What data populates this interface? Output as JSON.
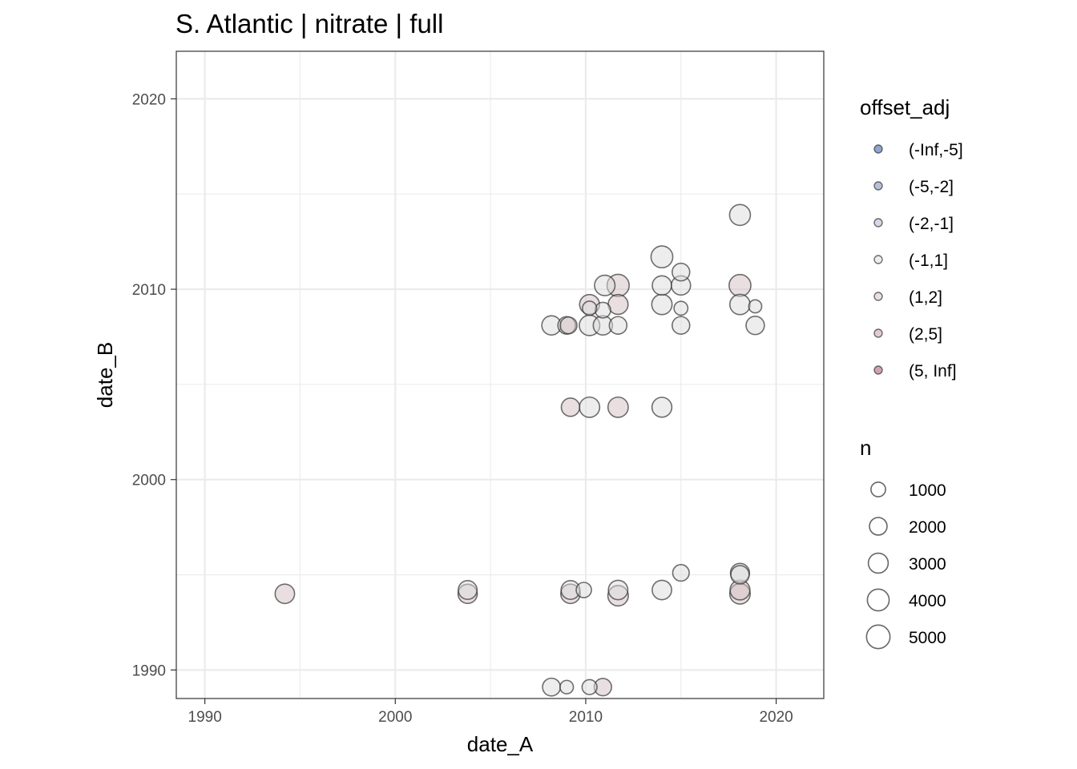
{
  "chart_data": {
    "type": "scatter",
    "title": "S. Atlantic | nitrate | full",
    "xlabel": "date_A",
    "ylabel": "date_B",
    "xlim": [
      1988.5,
      2022.5
    ],
    "ylim": [
      1988.5,
      2022.5
    ],
    "x_ticks": [
      1990,
      2000,
      2010,
      2020
    ],
    "y_ticks": [
      1990,
      2000,
      2010,
      2020
    ],
    "x_tick_labels": [
      "1990",
      "2000",
      "2010",
      "2020"
    ],
    "y_tick_labels": [
      "1990",
      "2000",
      "2010",
      "2020"
    ],
    "grid": true,
    "legend_position": "right",
    "point_alpha": 0.5,
    "color_legend": {
      "title": "offset_adj",
      "entries": [
        {
          "label": "(-Inf,-5]",
          "color": "#1b4b9f"
        },
        {
          "label": "(-5,-2]",
          "color": "#6f7fb8"
        },
        {
          "label": "(-2,-1]",
          "color": "#a9b0cf"
        },
        {
          "label": "(-1,1]",
          "color": "#dcdcdc"
        },
        {
          "label": "(1,2]",
          "color": "#d4bfc4"
        },
        {
          "label": "(2,5]",
          "color": "#c49aa6"
        },
        {
          "label": "(5, Inf]",
          "color": "#a3475f"
        }
      ]
    },
    "size_legend": {
      "title": "n",
      "entries": [
        {
          "label": "1000",
          "value": 1000
        },
        {
          "label": "2000",
          "value": 2000
        },
        {
          "label": "3000",
          "value": 3000
        },
        {
          "label": "4000",
          "value": 4000
        },
        {
          "label": "5000",
          "value": 5000
        }
      ]
    },
    "points": [
      {
        "x": 1994.2,
        "y": 1994.0,
        "n": 2800,
        "offset": "(1,2]"
      },
      {
        "x": 2003.8,
        "y": 1994.2,
        "n": 2500,
        "offset": "(-1,1]"
      },
      {
        "x": 2003.8,
        "y": 1994.0,
        "n": 2700,
        "offset": "(1,2]"
      },
      {
        "x": 2009.2,
        "y": 1994.2,
        "n": 2500,
        "offset": "(-1,1]"
      },
      {
        "x": 2009.2,
        "y": 1994.0,
        "n": 2800,
        "offset": "(1,2]"
      },
      {
        "x": 2009.9,
        "y": 1994.2,
        "n": 1200,
        "offset": "(-1,1]"
      },
      {
        "x": 2011.7,
        "y": 1994.2,
        "n": 2800,
        "offset": "(-1,1]"
      },
      {
        "x": 2011.7,
        "y": 1993.9,
        "n": 3300,
        "offset": "(1,2]"
      },
      {
        "x": 2014.0,
        "y": 1994.2,
        "n": 2800,
        "offset": "(-1,1]"
      },
      {
        "x": 2015.0,
        "y": 1995.1,
        "n": 1600,
        "offset": "(-1,1]"
      },
      {
        "x": 2018.1,
        "y": 1995.1,
        "n": 2600,
        "offset": "(-1,1]"
      },
      {
        "x": 2018.1,
        "y": 1995.0,
        "n": 2300,
        "offset": "(-1,1]"
      },
      {
        "x": 2018.1,
        "y": 1994.2,
        "n": 3000,
        "offset": "(1,2]"
      },
      {
        "x": 2018.1,
        "y": 1994.0,
        "n": 3300,
        "offset": "(1,2]"
      },
      {
        "x": 2008.2,
        "y": 1989.1,
        "n": 2100,
        "offset": "(-1,1]"
      },
      {
        "x": 2009.0,
        "y": 1989.1,
        "n": 700,
        "offset": "(-1,1]"
      },
      {
        "x": 2010.2,
        "y": 1989.1,
        "n": 1100,
        "offset": "(-1,1]"
      },
      {
        "x": 2010.9,
        "y": 1989.1,
        "n": 1900,
        "offset": "(1,2]"
      },
      {
        "x": 2009.2,
        "y": 2003.8,
        "n": 2300,
        "offset": "(1,2]"
      },
      {
        "x": 2010.2,
        "y": 2003.8,
        "n": 3200,
        "offset": "(-1,1]"
      },
      {
        "x": 2011.7,
        "y": 2003.8,
        "n": 3200,
        "offset": "(1,2]"
      },
      {
        "x": 2014.0,
        "y": 2003.8,
        "n": 3000,
        "offset": "(-1,1]"
      },
      {
        "x": 2008.2,
        "y": 2008.1,
        "n": 2700,
        "offset": "(-1,1]"
      },
      {
        "x": 2009.0,
        "y": 2008.1,
        "n": 2000,
        "offset": "(-1,1]"
      },
      {
        "x": 2009.1,
        "y": 2008.1,
        "n": 1700,
        "offset": "(1,2]"
      },
      {
        "x": 2010.2,
        "y": 2008.1,
        "n": 3300,
        "offset": "(-1,1]"
      },
      {
        "x": 2010.2,
        "y": 2009.0,
        "n": 900,
        "offset": "(-1,1]"
      },
      {
        "x": 2010.2,
        "y": 2009.2,
        "n": 3000,
        "offset": "(1,2]"
      },
      {
        "x": 2010.9,
        "y": 2008.1,
        "n": 2700,
        "offset": "(-1,1]"
      },
      {
        "x": 2010.9,
        "y": 2008.9,
        "n": 1300,
        "offset": "(-1,1]"
      },
      {
        "x": 2011.0,
        "y": 2010.2,
        "n": 3300,
        "offset": "(-1,1]"
      },
      {
        "x": 2011.7,
        "y": 2008.1,
        "n": 2000,
        "offset": "(-1,1]"
      },
      {
        "x": 2011.7,
        "y": 2009.2,
        "n": 3000,
        "offset": "(1,2]"
      },
      {
        "x": 2011.7,
        "y": 2010.2,
        "n": 4200,
        "offset": "(1,2]"
      },
      {
        "x": 2014.0,
        "y": 2009.2,
        "n": 3200,
        "offset": "(-1,1]"
      },
      {
        "x": 2014.0,
        "y": 2010.2,
        "n": 2700,
        "offset": "(-1,1]"
      },
      {
        "x": 2014.0,
        "y": 2011.7,
        "n": 4000,
        "offset": "(-1,1]"
      },
      {
        "x": 2015.0,
        "y": 2008.1,
        "n": 2000,
        "offset": "(-1,1]"
      },
      {
        "x": 2015.0,
        "y": 2009.0,
        "n": 800,
        "offset": "(-1,1]"
      },
      {
        "x": 2015.0,
        "y": 2010.2,
        "n": 2700,
        "offset": "(-1,1]"
      },
      {
        "x": 2015.0,
        "y": 2010.9,
        "n": 2000,
        "offset": "(-1,1]"
      },
      {
        "x": 2018.1,
        "y": 2009.2,
        "n": 3200,
        "offset": "(-1,1]"
      },
      {
        "x": 2018.1,
        "y": 2010.2,
        "n": 4000,
        "offset": "(1,2]"
      },
      {
        "x": 2018.1,
        "y": 2013.9,
        "n": 3500,
        "offset": "(-1,1]"
      },
      {
        "x": 2018.9,
        "y": 2008.1,
        "n": 2300,
        "offset": "(-1,1]"
      },
      {
        "x": 2018.9,
        "y": 2009.1,
        "n": 600,
        "offset": "(-1,1]"
      }
    ]
  }
}
